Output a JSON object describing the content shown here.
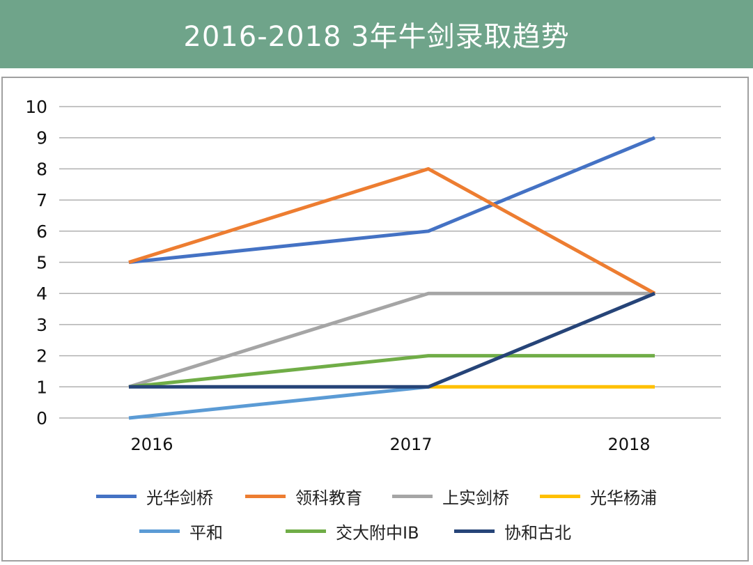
{
  "chart_data": {
    "type": "line",
    "title": "2016-2018  3年牛剑录取趋势",
    "categories": [
      "2016",
      "2017",
      "2018"
    ],
    "ylim": [
      0,
      10
    ],
    "yticks": [
      "0",
      "1",
      "2",
      "3",
      "4",
      "5",
      "6",
      "7",
      "8",
      "9",
      "10"
    ],
    "grid": true,
    "legend_position": "bottom",
    "series": [
      {
        "name": "光华剑桥",
        "color": "#4472c4",
        "values": [
          5,
          6,
          9
        ]
      },
      {
        "name": "领科教育",
        "color": "#ed7d31",
        "values": [
          5,
          8,
          4
        ]
      },
      {
        "name": "上实剑桥",
        "color": "#a5a5a5",
        "values": [
          1,
          4,
          4
        ]
      },
      {
        "name": "光华杨浦",
        "color": "#ffc000",
        "values": [
          null,
          1,
          1
        ]
      },
      {
        "name": "平和",
        "color": "#5b9bd5",
        "values": [
          0,
          1,
          null
        ]
      },
      {
        "name": "交大附中IB",
        "color": "#70ad47",
        "values": [
          1,
          2,
          2
        ]
      },
      {
        "name": "协和古北",
        "color": "#264478",
        "values": [
          1,
          1,
          4
        ]
      }
    ]
  }
}
